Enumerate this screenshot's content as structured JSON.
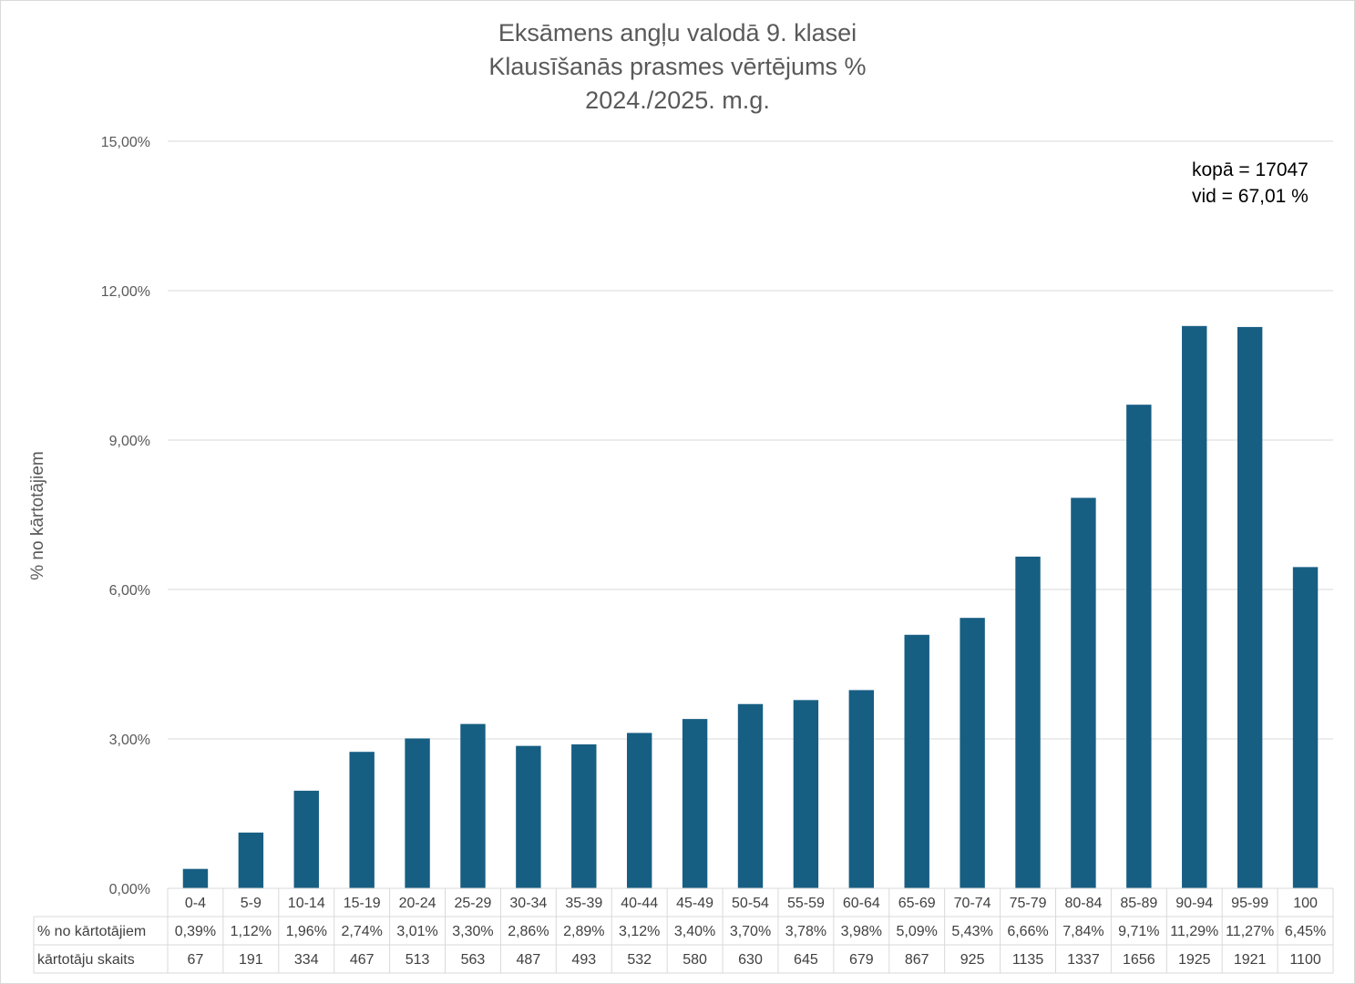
{
  "chart_data": {
    "type": "bar",
    "title": [
      "Eksāmens angļu valodā 9. klasei",
      "Klausīšanās prasmes vērtējums %",
      "2024./2025. m.g."
    ],
    "ylabel": "% no kārtotājiem",
    "ylim": [
      0,
      15
    ],
    "yticks": [
      "0,00%",
      "3,00%",
      "6,00%",
      "9,00%",
      "12,00%",
      "15,00%"
    ],
    "ytick_values": [
      0,
      3,
      6,
      9,
      12,
      15
    ],
    "grid": true,
    "bar_color": "#175e83",
    "annotation": [
      "kopā = 17047",
      "vid = 67,01 %"
    ],
    "categories": [
      "0-4",
      "5-9",
      "10-14",
      "15-19",
      "20-24",
      "25-29",
      "30-34",
      "35-39",
      "40-44",
      "45-49",
      "50-54",
      "55-59",
      "60-64",
      "65-69",
      "70-74",
      "75-79",
      "80-84",
      "85-89",
      "90-94",
      "95-99",
      "100"
    ],
    "values": [
      0.39,
      1.12,
      1.96,
      2.74,
      3.01,
      3.3,
      2.86,
      2.89,
      3.12,
      3.4,
      3.7,
      3.78,
      3.98,
      5.09,
      5.43,
      6.66,
      7.84,
      9.71,
      11.29,
      11.27,
      6.45
    ],
    "table": {
      "rows": [
        {
          "label": "% no kārtotājiem",
          "cells": [
            "0,39%",
            "1,12%",
            "1,96%",
            "2,74%",
            "3,01%",
            "3,30%",
            "2,86%",
            "2,89%",
            "3,12%",
            "3,40%",
            "3,70%",
            "3,78%",
            "3,98%",
            "5,09%",
            "5,43%",
            "6,66%",
            "7,84%",
            "9,71%",
            "11,29%",
            "11,27%",
            "6,45%"
          ]
        },
        {
          "label": "kārtotāju skaits",
          "cells": [
            "67",
            "191",
            "334",
            "467",
            "513",
            "563",
            "487",
            "493",
            "532",
            "580",
            "630",
            "645",
            "679",
            "867",
            "925",
            "1135",
            "1337",
            "1656",
            "1925",
            "1921",
            "1100"
          ]
        }
      ]
    }
  }
}
